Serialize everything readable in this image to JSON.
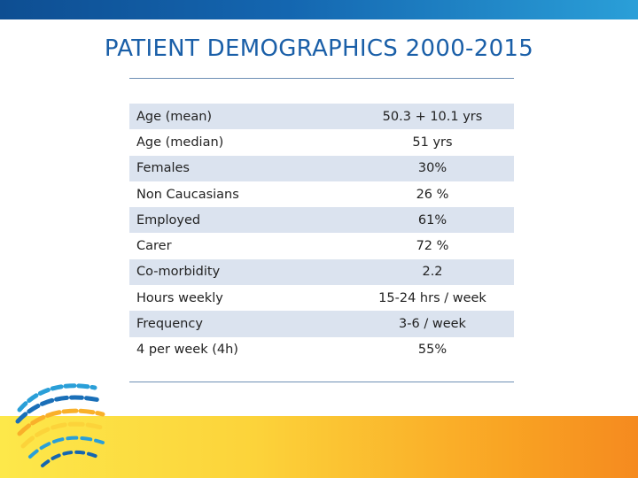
{
  "title": "PATIENT DEMOGRAPHICS 2000-2015",
  "rows": [
    {
      "label": "Age (mean)",
      "value": "50.3 + 10.1 yrs",
      "shaded": true
    },
    {
      "label": "Age (median)",
      "value": "51 yrs",
      "shaded": false
    },
    {
      "label": "Females",
      "value": "30%",
      "shaded": true
    },
    {
      "label": "Non Caucasians",
      "value": "26 %",
      "shaded": false
    },
    {
      "label": "Employed",
      "value": "61%",
      "shaded": true
    },
    {
      "label": "Carer",
      "value": "72 %",
      "shaded": false
    },
    {
      "label": "Co-morbidity",
      "value": "2.2",
      "shaded": true
    },
    {
      "label": "Hours weekly",
      "value": "15-24 hrs / week",
      "shaded": false
    },
    {
      "label": "Frequency",
      "value": "3-6 / week",
      "shaded": true
    },
    {
      "label": "4 per week (4h)",
      "value": "55%",
      "shaded": false
    }
  ],
  "colors": {
    "title": "#1a5fa8",
    "row_shade": "#dbe3ef",
    "top_bar": "#1466b0",
    "bottom_band": "#f9a323"
  },
  "icons": [
    "globe-swirl-logo-icon"
  ]
}
